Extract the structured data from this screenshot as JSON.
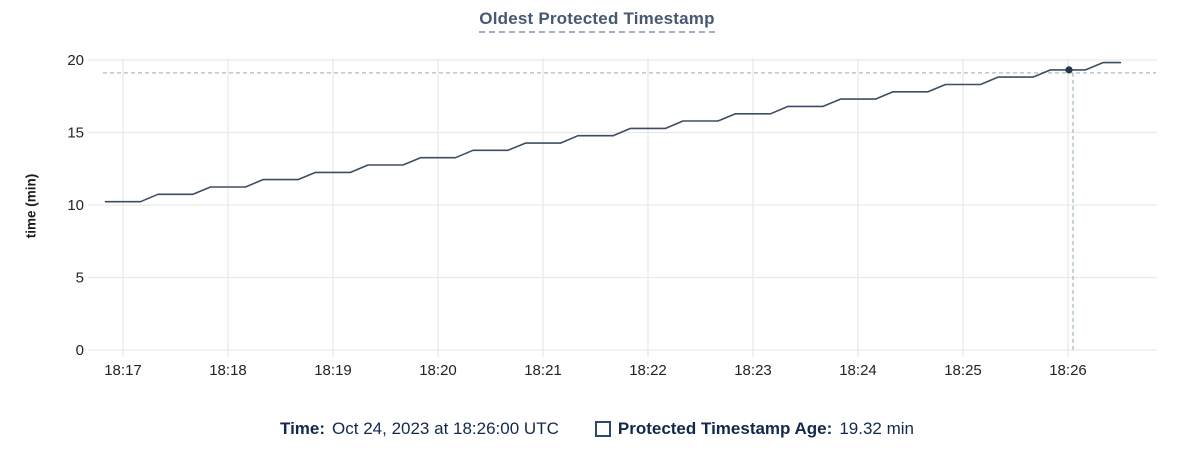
{
  "header": {
    "title": "Oldest Protected Timestamp"
  },
  "colors": {
    "title": "#475872",
    "title_underline": "#9db0c7",
    "line": "#3e4d66",
    "hover_dot": "#26364d",
    "crosshair": "#a7bbc8",
    "gridline": "#e9e9e9",
    "axis_text": "#242424",
    "legend_text": "#13294b",
    "swatch_border": "#2c4a6e"
  },
  "legend": {
    "time_label": "Time:",
    "time_value": "Oct 24, 2023 at 18:26:00 UTC",
    "series_label": "Protected Timestamp Age:",
    "series_value": "19.32 min"
  },
  "chart_data": {
    "type": "line",
    "title": "Oldest Protected Timestamp",
    "xlabel": "",
    "ylabel": "time (min)",
    "ylim": [
      0,
      20
    ],
    "y_ticks": [
      0,
      5,
      10,
      15,
      20
    ],
    "x_ticks": [
      "18:17",
      "18:18",
      "18:19",
      "18:20",
      "18:21",
      "18:22",
      "18:23",
      "18:24",
      "18:25",
      "18:26"
    ],
    "grid": true,
    "legend_position": "bottom",
    "series": [
      {
        "name": "Protected Timestamp Age",
        "unit": "min",
        "points": [
          [
            "18:16:50",
            10.23
          ],
          [
            "18:17:10",
            10.23
          ],
          [
            "18:17:20",
            10.74
          ],
          [
            "18:17:40",
            10.74
          ],
          [
            "18:17:50",
            11.24
          ],
          [
            "18:18:10",
            11.24
          ],
          [
            "18:18:20",
            11.75
          ],
          [
            "18:18:40",
            11.75
          ],
          [
            "18:18:50",
            12.25
          ],
          [
            "18:19:10",
            12.25
          ],
          [
            "18:19:20",
            12.76
          ],
          [
            "18:19:40",
            12.76
          ],
          [
            "18:19:50",
            13.26
          ],
          [
            "18:20:10",
            13.26
          ],
          [
            "18:20:20",
            13.77
          ],
          [
            "18:20:40",
            13.77
          ],
          [
            "18:20:50",
            14.27
          ],
          [
            "18:21:10",
            14.27
          ],
          [
            "18:21:20",
            14.78
          ],
          [
            "18:21:40",
            14.78
          ],
          [
            "18:21:50",
            15.28
          ],
          [
            "18:22:10",
            15.28
          ],
          [
            "18:22:20",
            15.79
          ],
          [
            "18:22:40",
            15.79
          ],
          [
            "18:22:50",
            16.29
          ],
          [
            "18:23:10",
            16.29
          ],
          [
            "18:23:20",
            16.8
          ],
          [
            "18:23:40",
            16.8
          ],
          [
            "18:23:50",
            17.3
          ],
          [
            "18:24:10",
            17.3
          ],
          [
            "18:24:20",
            17.81
          ],
          [
            "18:24:40",
            17.81
          ],
          [
            "18:24:50",
            18.31
          ],
          [
            "18:25:10",
            18.31
          ],
          [
            "18:25:20",
            18.82
          ],
          [
            "18:25:40",
            18.82
          ],
          [
            "18:25:50",
            19.32
          ],
          [
            "18:26:10",
            19.32
          ],
          [
            "18:26:20",
            19.82
          ],
          [
            "18:26:30",
            19.82
          ]
        ]
      }
    ],
    "hover_point": {
      "time": "18:26:00",
      "value": 19.32,
      "time_label": "Oct 24, 2023 at 18:26:00 UTC",
      "value_label": "19.32 min"
    }
  }
}
